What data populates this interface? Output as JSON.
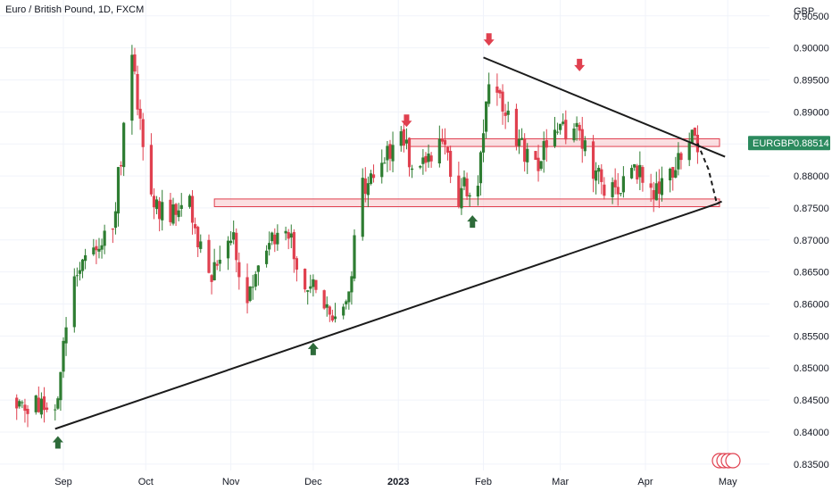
{
  "header": {
    "title": "Euro / British Pound, 1D, FXCM"
  },
  "price_tag": {
    "symbol": "EURGBP",
    "value": "0.88514",
    "color": "#2b8a5e"
  },
  "colors": {
    "up": "#2e7d32",
    "down": "#e0404f",
    "trendline": "#1b1b1b",
    "zone_fill": "#f7c5c9",
    "zone_stroke": "#e0404f",
    "arrow_up": "#2e6b3a",
    "arrow_down": "#e0404f",
    "background": "#ffffff"
  },
  "chart_data": {
    "type": "candlestick",
    "currency_label": "GBP",
    "y_ticks": [
      "0.90500",
      "0.90000",
      "0.89500",
      "0.89000",
      "0.88500",
      "0.88000",
      "0.87500",
      "0.87000",
      "0.86500",
      "0.86000",
      "0.85500",
      "0.85000",
      "0.84500",
      "0.84000",
      "0.83500"
    ],
    "ylim": [
      0.834,
      0.9065
    ],
    "x_labels": [
      {
        "label": "Sep",
        "date": "2022-09-01"
      },
      {
        "label": "Oct",
        "date": "2022-10-01"
      },
      {
        "label": "Nov",
        "date": "2022-11-01"
      },
      {
        "label": "Dec",
        "date": "2022-12-01"
      },
      {
        "label": "2023",
        "date": "2023-01-01"
      },
      {
        "label": "Feb",
        "date": "2023-02-01"
      },
      {
        "label": "Mar",
        "date": "2023-03-01"
      },
      {
        "label": "Apr",
        "date": "2023-04-01"
      },
      {
        "label": "May",
        "date": "2023-05-01"
      }
    ],
    "anchors": [
      {
        "date": "2022-08-15",
        "close": 0.845
      },
      {
        "date": "2022-08-22",
        "close": 0.844
      },
      {
        "date": "2022-08-29",
        "close": 0.8435
      },
      {
        "date": "2022-09-05",
        "close": 0.865
      },
      {
        "date": "2022-09-12",
        "close": 0.868
      },
      {
        "date": "2022-09-19",
        "close": 0.872
      },
      {
        "date": "2022-09-26",
        "close": 0.899
      },
      {
        "date": "2022-10-03",
        "close": 0.876
      },
      {
        "date": "2022-10-10",
        "close": 0.873
      },
      {
        "date": "2022-10-17",
        "close": 0.876
      },
      {
        "date": "2022-10-24",
        "close": 0.863
      },
      {
        "date": "2022-10-31",
        "close": 0.872
      },
      {
        "date": "2022-11-07",
        "close": 0.862
      },
      {
        "date": "2022-11-14",
        "close": 0.87
      },
      {
        "date": "2022-11-21",
        "close": 0.872
      },
      {
        "date": "2022-11-28",
        "close": 0.864
      },
      {
        "date": "2022-12-05",
        "close": 0.86
      },
      {
        "date": "2022-12-12",
        "close": 0.858
      },
      {
        "date": "2022-12-19",
        "close": 0.878
      },
      {
        "date": "2022-12-26",
        "close": 0.882
      },
      {
        "date": "2023-01-02",
        "close": 0.885
      },
      {
        "date": "2023-01-09",
        "close": 0.881
      },
      {
        "date": "2023-01-16",
        "close": 0.887
      },
      {
        "date": "2023-01-23",
        "close": 0.877
      },
      {
        "date": "2023-01-30",
        "close": 0.88
      },
      {
        "date": "2023-02-03",
        "close": 0.894
      },
      {
        "date": "2023-02-13",
        "close": 0.886
      },
      {
        "date": "2023-02-20",
        "close": 0.882
      },
      {
        "date": "2023-02-27",
        "close": 0.886
      },
      {
        "date": "2023-03-06",
        "close": 0.889
      },
      {
        "date": "2023-03-13",
        "close": 0.88
      },
      {
        "date": "2023-03-20",
        "close": 0.877
      },
      {
        "date": "2023-03-27",
        "close": 0.881
      },
      {
        "date": "2023-04-03",
        "close": 0.878
      },
      {
        "date": "2023-04-10",
        "close": 0.879
      },
      {
        "date": "2023-04-17",
        "close": 0.8851
      }
    ],
    "last_date": "2023-04-20",
    "resistance_zones": [
      {
        "from": "2023-01-05",
        "to": "2023-04-28",
        "low": 0.8846,
        "high": 0.8858
      },
      {
        "from": "2022-10-26",
        "to": "2023-04-28",
        "low": 0.8752,
        "high": 0.8764
      }
    ],
    "trendlines": [
      {
        "name": "ascending support",
        "start": {
          "date": "2022-08-29",
          "value": 0.8405
        },
        "end": {
          "date": "2023-04-28",
          "value": 0.8758
        }
      },
      {
        "name": "descending resistance",
        "start": {
          "date": "2023-02-01",
          "value": 0.8985
        },
        "end": {
          "date": "2023-04-30",
          "value": 0.883
        }
      }
    ],
    "projection": [
      {
        "date": "2023-04-20",
        "value": 0.8851
      },
      {
        "date": "2023-04-24",
        "value": 0.881
      },
      {
        "date": "2023-04-27",
        "value": 0.8757
      },
      {
        "date": "2023-04-30",
        "value": 0.8762
      }
    ],
    "arrows_up": [
      {
        "date": "2022-08-30",
        "value": 0.8402
      },
      {
        "date": "2022-12-01",
        "value": 0.8548
      },
      {
        "date": "2023-01-28",
        "value": 0.8747
      }
    ],
    "arrows_down": [
      {
        "date": "2023-01-04",
        "value": 0.8868
      },
      {
        "date": "2023-02-03",
        "value": 0.8995
      },
      {
        "date": "2023-03-08",
        "value": 0.8955
      }
    ]
  }
}
